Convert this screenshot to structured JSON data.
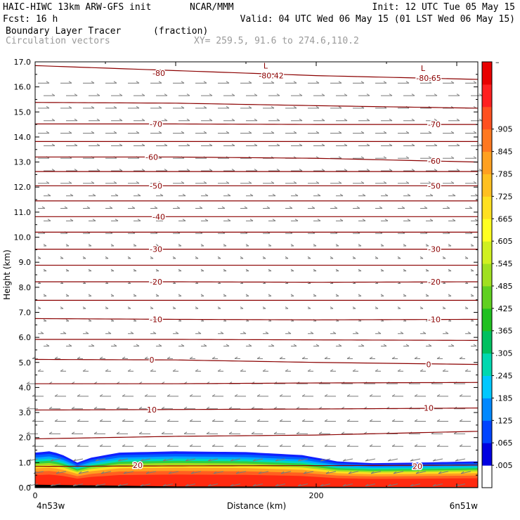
{
  "header": {
    "line1_left": "HAIC-HIWC 13km ARW-GFS init",
    "line1_mid": "NCAR/MMM",
    "line1_right": "Init: 12 UTC Tue 05 May 15",
    "line2_left": "Fcst:    16 h",
    "line2_right": "Valid: 04 UTC Wed 06 May 15 (01 LST Wed 06 May 15)",
    "line3_left": "Boundary Layer Tracer",
    "line3_mid": "(fraction)",
    "line4_left": "Circulation vectors",
    "line4_mid": "XY= 259.5, 91.6 to 274.6,110.2"
  },
  "colors": {
    "contour": "#8b0000",
    "vector": "#7a7a7a",
    "axis": "#000000",
    "header_gray": "#9a9a9a"
  },
  "chart_data": {
    "type": "heatmap",
    "xlabel": "Distance (km)",
    "ylabel": "Height (km)",
    "xlim": [
      0,
      315
    ],
    "ylim": [
      0,
      17
    ],
    "x_ticks": [
      0,
      200
    ],
    "x_tick_labels": [
      "0",
      "200"
    ],
    "x_end_labels": {
      "left": "4n53w",
      "right": "6n51w"
    },
    "y_ticks": [
      0,
      1,
      2,
      3,
      4,
      5,
      6,
      7,
      8,
      9,
      10,
      11,
      12,
      13,
      14,
      15,
      16,
      17
    ],
    "y_tick_labels": [
      "0.0",
      "1.0",
      "2.0",
      "3.0",
      "4.0",
      "5.0",
      "6.0",
      "7.0",
      "8.0",
      "9.0",
      "10.0",
      "11.0",
      "12.0",
      "13.0",
      "14.0",
      "15.0",
      "16.0",
      "17.0"
    ],
    "colorbar": {
      "labels": [
        ".005",
        ".065",
        ".125",
        ".185",
        ".245",
        ".305",
        ".365",
        ".425",
        ".485",
        ".545",
        ".605",
        ".665",
        ".725",
        ".785",
        ".845",
        ".905"
      ],
      "top_label": "–",
      "colors": [
        "#ffffff",
        "#0000e0",
        "#0044ff",
        "#0088ff",
        "#00c8ff",
        "#00d8b0",
        "#00c060",
        "#20c020",
        "#60d020",
        "#a0e020",
        "#d0f020",
        "#ffff20",
        "#ffe020",
        "#ffc020",
        "#ffa020",
        "#ff7820",
        "#ff5020",
        "#ff2020",
        "#e80000"
      ]
    },
    "tracer_top_km": [
      [
        0,
        1.4
      ],
      [
        10,
        1.45
      ],
      [
        18,
        1.35
      ],
      [
        25,
        1.15
      ],
      [
        30,
        1.0
      ],
      [
        40,
        1.2
      ],
      [
        60,
        1.4
      ],
      [
        100,
        1.45
      ],
      [
        150,
        1.42
      ],
      [
        190,
        1.3
      ],
      [
        215,
        1.05
      ],
      [
        240,
        0.98
      ],
      [
        270,
        1.0
      ],
      [
        315,
        1.05
      ]
    ],
    "contours": [
      {
        "label": "20",
        "y_km": [
          0.85,
          0.87,
          0.88,
          0.9
        ],
        "label_at": [
          [
            73,
            0.9
          ],
          [
            272,
            0.85
          ]
        ]
      },
      {
        "label": "",
        "y_km": [
          1.95,
          2.05,
          2.1,
          2.25
        ]
      },
      {
        "label": "10",
        "y_km": [
          3.1,
          3.12,
          3.14,
          3.18
        ],
        "label_at": [
          [
            83,
            3.12
          ],
          [
            280,
            3.18
          ]
        ]
      },
      {
        "label": "",
        "y_km": [
          4.15,
          4.15,
          4.18,
          4.2
        ]
      },
      {
        "label": "0",
        "y_km": [
          5.12,
          5.1,
          5.0,
          4.92
        ],
        "label_at": [
          [
            83,
            5.1
          ],
          [
            280,
            4.92
          ]
        ]
      },
      {
        "label": "",
        "y_km": [
          5.92,
          5.92,
          5.9,
          5.88
        ]
      },
      {
        "label": "-10",
        "y_km": [
          6.75,
          6.72,
          6.7,
          6.72
        ],
        "label_at": [
          [
            86,
            6.72
          ],
          [
            284,
            6.72
          ]
        ]
      },
      {
        "label": "",
        "y_km": [
          7.48,
          7.48,
          7.48,
          7.48
        ]
      },
      {
        "label": "-20",
        "y_km": [
          8.22,
          8.22,
          8.2,
          8.22
        ],
        "label_at": [
          [
            86,
            8.22
          ],
          [
            284,
            8.22
          ]
        ]
      },
      {
        "label": "",
        "y_km": [
          8.88,
          8.88,
          8.88,
          8.88
        ]
      },
      {
        "label": "-30",
        "y_km": [
          9.52,
          9.52,
          9.52,
          9.52
        ],
        "label_at": [
          [
            86,
            9.52
          ],
          [
            284,
            9.52
          ]
        ]
      },
      {
        "label": "",
        "y_km": [
          10.2,
          10.2,
          10.2,
          10.2
        ]
      },
      {
        "label": "-40",
        "y_km": [
          10.82,
          10.82,
          10.82,
          10.82
        ],
        "label_at": [
          [
            88,
            10.82
          ]
        ]
      },
      {
        "label": "",
        "y_km": [
          11.45,
          11.45,
          11.45,
          11.45
        ]
      },
      {
        "label": "-50",
        "y_km": [
          12.05,
          12.05,
          12.05,
          12.05
        ],
        "label_at": [
          [
            86,
            12.05
          ],
          [
            284,
            12.05
          ]
        ]
      },
      {
        "label": "",
        "y_km": [
          12.62,
          12.62,
          12.62,
          12.62
        ]
      },
      {
        "label": "-60",
        "y_km": [
          13.2,
          13.2,
          13.15,
          13.0
        ],
        "label_at": [
          [
            83,
            13.2
          ],
          [
            284,
            13.05
          ]
        ]
      },
      {
        "label": "",
        "y_km": [
          13.82,
          13.82,
          13.82,
          13.82
        ]
      },
      {
        "label": "-70",
        "y_km": [
          14.52,
          14.52,
          14.5,
          14.5
        ],
        "label_at": [
          [
            86,
            14.52
          ],
          [
            284,
            14.5
          ]
        ]
      },
      {
        "label": "",
        "y_km": [
          15.38,
          15.35,
          15.25,
          15.15
        ]
      },
      {
        "label": "-80",
        "y_km": [
          16.85,
          16.65,
          16.45,
          16.3
        ],
        "label_at": [
          [
            88,
            16.55
          ]
        ]
      }
    ],
    "minima": [
      {
        "label": "L",
        "value": "-80.42",
        "x": 163,
        "y": 16.45
      },
      {
        "label": "L",
        "value": "-80.65",
        "x": 275,
        "y": 16.35
      }
    ]
  }
}
